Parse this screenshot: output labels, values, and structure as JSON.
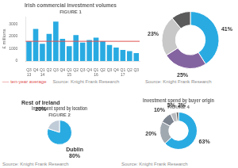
{
  "chart_data": [
    {
      "type": "bar",
      "title": "Irish commercial investment volumes",
      "subtitle": "FIGURE 1",
      "y_label": "£ millions",
      "categories": [
        "Q3\n13",
        "Q4",
        "Q1\n14",
        "Q2",
        "Q3",
        "Q4",
        "Q1\n15",
        "Q2",
        "Q3",
        "Q4",
        "Q1\n16",
        "Q2",
        "Q3",
        "Q4",
        "Q1\n17",
        "Q2",
        "Q3"
      ],
      "values": [
        1600,
        2600,
        1400,
        2200,
        3200,
        1800,
        1200,
        2100,
        1500,
        1700,
        1900,
        1600,
        1300,
        1100,
        900,
        800,
        650
      ],
      "color": "#29abe2",
      "ylim": [
        0,
        3600
      ],
      "yticks": [
        0,
        1000,
        2000,
        3000
      ],
      "grid": false,
      "reference_line": {
        "value": 1600,
        "label": "── ten-year average",
        "color": "#e05050"
      },
      "annotations": [
        "Source: Knight Frank Research"
      ]
    },
    {
      "type": "doughnut",
      "values": [
        41,
        25,
        23,
        11
      ],
      "colors": [
        "#29abe2",
        "#8464a0",
        "#c8c8c8",
        "#5b5b5b"
      ],
      "data_labels": true,
      "value_labels": [
        "41%",
        "25%",
        "23%",
        null
      ],
      "annotations": [
        "Source: Knight Frank Research"
      ]
    },
    {
      "type": "pie",
      "title": "Investment spend by location",
      "subtitle": "FIGURE 2",
      "categories": [
        "Dublin",
        "Rest of Ireland"
      ],
      "values": [
        80,
        20
      ],
      "colors": [
        "#29abe2",
        "#c0ccd8"
      ],
      "data_labels": true,
      "value_labels": [
        "80%",
        "20%"
      ],
      "annotations": [
        "Source: Knight Frank Research"
      ]
    },
    {
      "type": "doughnut",
      "title": "Investment spend by buyer origin",
      "subtitle": "FIGURE 4",
      "values": [
        63,
        20,
        10,
        5,
        2
      ],
      "colors": [
        "#29abe2",
        "#a0a8b0",
        "#7c8490",
        "#b8bcc0",
        "#5b5b5b"
      ],
      "data_labels": true,
      "value_labels": [
        "63%",
        "20%",
        "10%",
        "5%",
        "2%"
      ],
      "annotations": [
        "Source: Knight Frank Research"
      ]
    }
  ]
}
